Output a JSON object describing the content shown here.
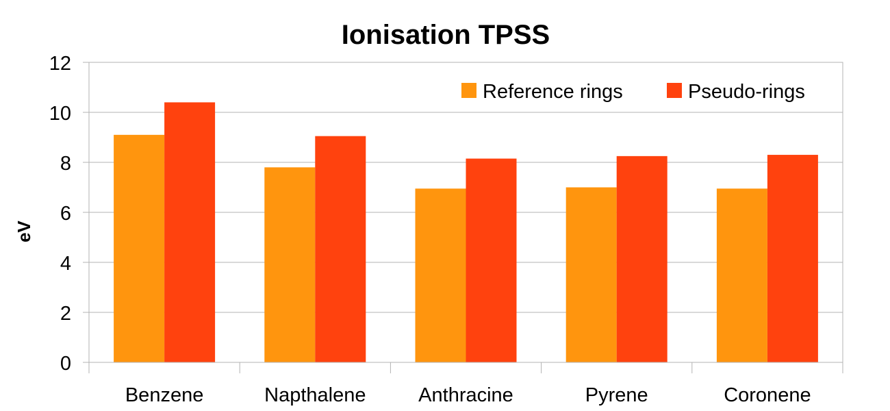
{
  "chart_data": {
    "type": "bar",
    "title": "Ionisation TPSS",
    "xlabel": "",
    "ylabel": "eV",
    "categories": [
      "Benzene",
      "Napthalene",
      "Anthracine",
      "Pyrene",
      "Coronene"
    ],
    "series": [
      {
        "name": "Reference rings",
        "color": "#ff950e",
        "values": [
          9.1,
          7.8,
          6.95,
          7.0,
          6.95
        ]
      },
      {
        "name": "Pseudo-rings",
        "color": "#ff420e",
        "values": [
          10.4,
          9.05,
          8.15,
          8.25,
          8.3
        ]
      }
    ],
    "ylim": [
      0,
      12
    ],
    "yticks": [
      "0",
      "2",
      "4",
      "6",
      "8",
      "10",
      "12"
    ],
    "grid": true,
    "legend_position": "top-right"
  }
}
